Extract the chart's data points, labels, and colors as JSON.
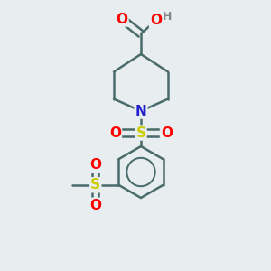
{
  "bg_color": "#e8edf0",
  "bond_color": "#4a6b6b",
  "bond_width": 1.8,
  "atom_colors": {
    "O": "#ff0000",
    "N": "#2222cc",
    "S": "#cccc00",
    "C": "#4a6b6b",
    "H": "#888888"
  },
  "font_size_atoms": 11,
  "font_size_H": 9,
  "figsize": [
    3.0,
    3.0
  ],
  "dpi": 100
}
